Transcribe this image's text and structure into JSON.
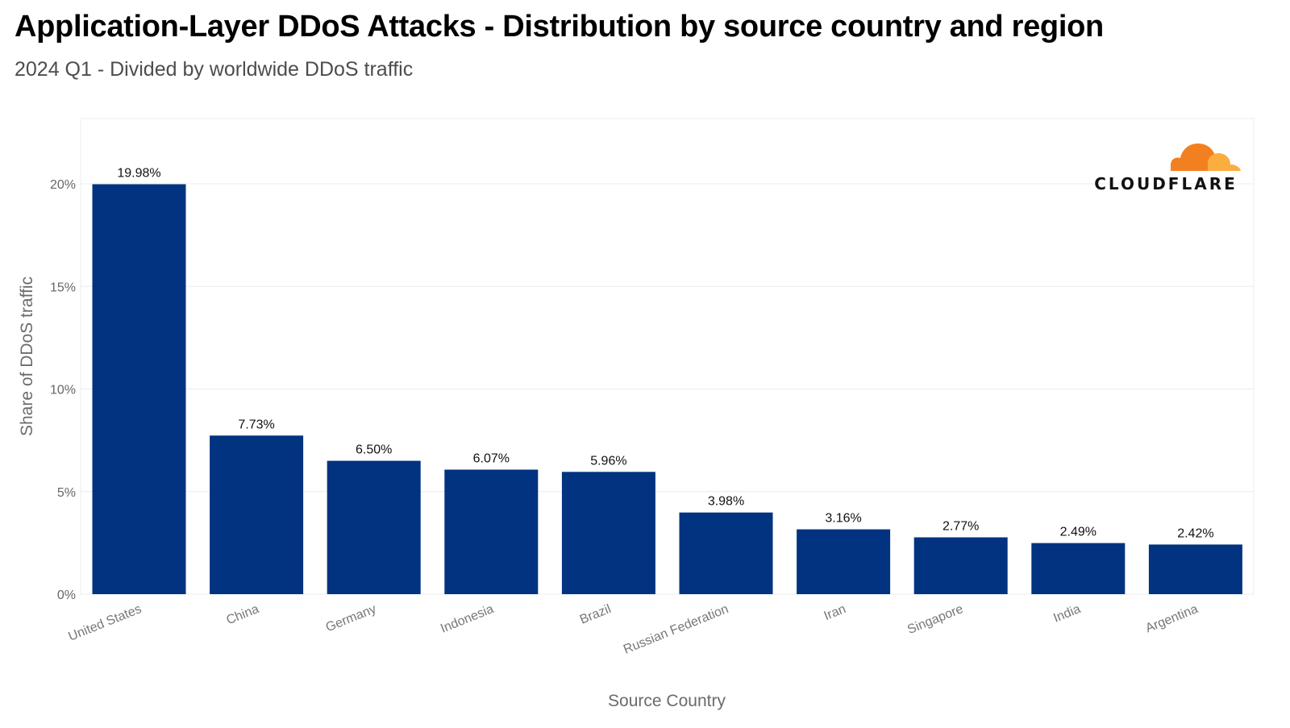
{
  "header": {
    "title": "Application-Layer DDoS Attacks - Distribution by source country and region",
    "subtitle": "2024 Q1 - Divided by worldwide DDoS traffic"
  },
  "logo": {
    "text": "CLOUDFLARE",
    "icon": "cloudflare-cloud-icon",
    "colors": [
      "#f38020",
      "#faae40"
    ]
  },
  "chart_data": {
    "type": "bar",
    "categories": [
      "United States",
      "China",
      "Germany",
      "Indonesia",
      "Brazil",
      "Russian Federation",
      "Iran",
      "Singapore",
      "India",
      "Argentina"
    ],
    "values": [
      19.98,
      7.73,
      6.5,
      6.07,
      5.96,
      3.98,
      3.16,
      2.77,
      2.49,
      2.42
    ],
    "data_labels": [
      "19.98%",
      "7.73%",
      "6.50%",
      "6.07%",
      "5.96%",
      "3.98%",
      "3.16%",
      "2.77%",
      "2.49%",
      "2.42%"
    ],
    "title": "Application-Layer DDoS Attacks - Distribution by source country and region",
    "subtitle": "2024 Q1 - Divided by worldwide DDoS traffic",
    "xlabel": "Source Country",
    "ylabel": "Share of DDoS traffic",
    "ylim": [
      0,
      23
    ],
    "yticks": [
      0,
      5,
      10,
      15,
      20
    ],
    "ytick_labels": [
      "0%",
      "5%",
      "10%",
      "15%",
      "20%"
    ],
    "bar_color": "#013380",
    "grid": true,
    "legend": "none"
  }
}
